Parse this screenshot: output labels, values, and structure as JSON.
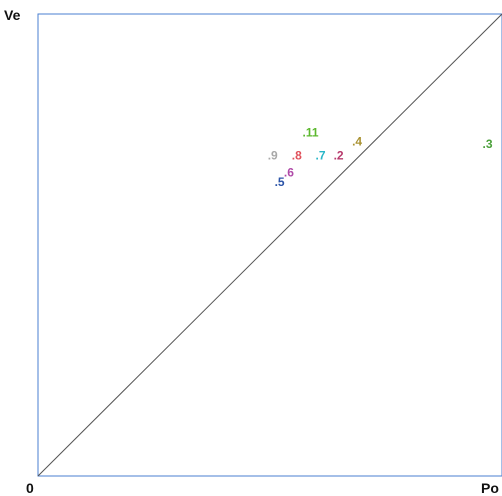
{
  "chart_data": {
    "type": "scatter",
    "y_axis_label": "Ve",
    "x_axis_label": "Po",
    "origin_label": "0",
    "xlim": [
      0,
      1
    ],
    "ylim": [
      0,
      1
    ],
    "diagonal_reference": true,
    "grid": false,
    "frame_color": "#4a7fd0",
    "points": [
      {
        "label": ".11",
        "x": 0.57,
        "y": 0.735,
        "color": "#5cb82e"
      },
      {
        "label": ".4",
        "x": 0.677,
        "y": 0.715,
        "color": "#a99232"
      },
      {
        "label": ".9",
        "x": 0.495,
        "y": 0.685,
        "color": "#a8a8a8"
      },
      {
        "label": ".8",
        "x": 0.547,
        "y": 0.685,
        "color": "#e0505a"
      },
      {
        "label": ".7",
        "x": 0.598,
        "y": 0.685,
        "color": "#29b6c8"
      },
      {
        "label": ".2",
        "x": 0.637,
        "y": 0.685,
        "color": "#b73a6c"
      },
      {
        "label": ".3",
        "x": 0.958,
        "y": 0.71,
        "color": "#4aa03a"
      },
      {
        "label": ".6",
        "x": 0.53,
        "y": 0.648,
        "color": "#b04aa8"
      },
      {
        "label": ".5",
        "x": 0.51,
        "y": 0.628,
        "color": "#2c54a8"
      }
    ]
  }
}
